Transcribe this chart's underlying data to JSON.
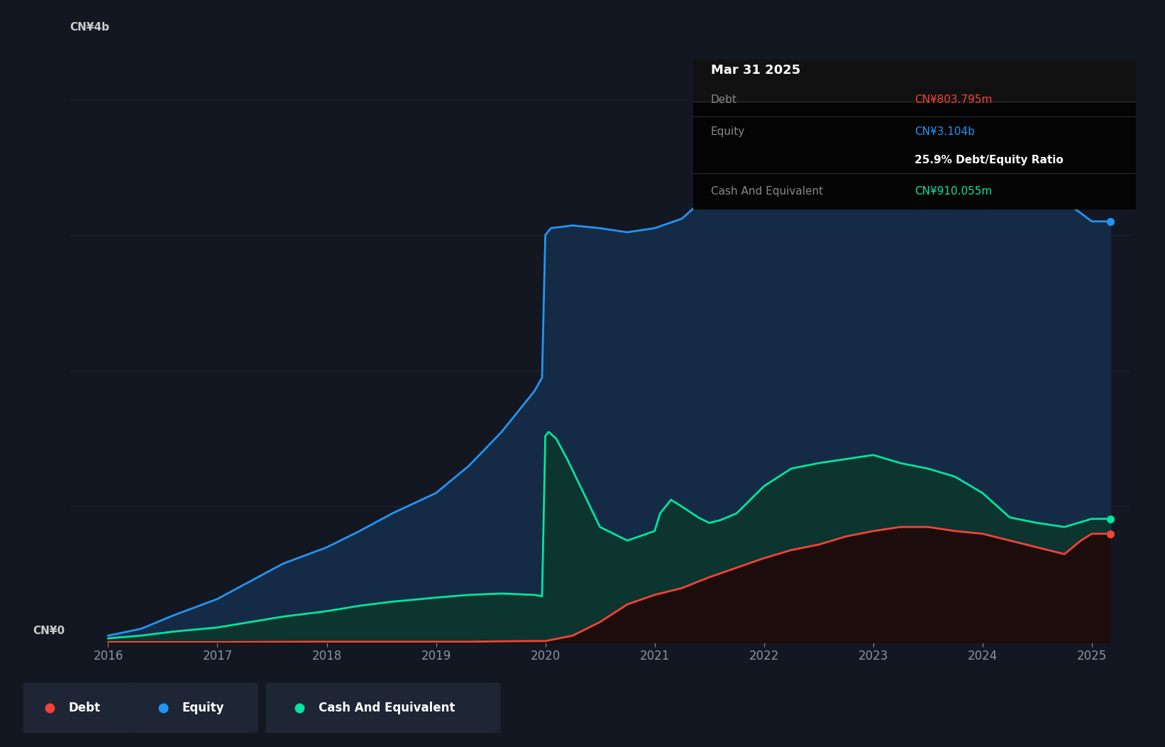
{
  "bg_color": "#131722",
  "plot_bg": "#131722",
  "grid_color": "#1e2535",
  "ylabel_text": "CN¥4b",
  "y0_text": "CN¥0",
  "x_ticks": [
    2016,
    2017,
    2018,
    2019,
    2020,
    2021,
    2022,
    2023,
    2024,
    2025
  ],
  "ylim": [
    0,
    4400000000.0
  ],
  "ytick_positions": [
    0,
    1000000000.0,
    2000000000.0,
    3000000000.0,
    4000000000.0
  ],
  "equity_color": "#2196f3",
  "debt_color": "#f44336",
  "cash_color": "#00e5a0",
  "equity_fill": "#152a45",
  "cash_fill_top": "#0d3832",
  "cash_fill_bottom": "#0a2520",
  "debt_fill": "#1f0f0f",
  "tooltip_bg": "#040404",
  "tooltip_title": "Mar 31 2025",
  "tooltip_debt_label": "Debt",
  "tooltip_debt_value": "CN¥803.795m",
  "tooltip_equity_label": "Equity",
  "tooltip_equity_value": "CN¥3.104b",
  "tooltip_ratio": "25.9% Debt/Equity Ratio",
  "tooltip_cash_label": "Cash And Equivalent",
  "tooltip_cash_value": "CN¥910.055m",
  "legend_bg": "#1e2535",
  "legend_debt": "Debt",
  "legend_equity": "Equity",
  "legend_cash": "Cash And Equivalent",
  "equity_x": [
    2016.0,
    2016.3,
    2016.6,
    2017.0,
    2017.3,
    2017.6,
    2018.0,
    2018.3,
    2018.6,
    2019.0,
    2019.3,
    2019.6,
    2019.9,
    2019.97,
    2020.0,
    2020.05,
    2020.25,
    2020.5,
    2020.75,
    2021.0,
    2021.25,
    2021.5,
    2021.75,
    2022.0,
    2022.25,
    2022.5,
    2022.75,
    2023.0,
    2023.25,
    2023.5,
    2023.75,
    2024.0,
    2024.25,
    2024.5,
    2024.75,
    2025.0,
    2025.17
  ],
  "equity_y": [
    50000000.0,
    100000000.0,
    200000000.0,
    320000000.0,
    450000000.0,
    580000000.0,
    700000000.0,
    820000000.0,
    950000000.0,
    1100000000.0,
    1300000000.0,
    1550000000.0,
    1850000000.0,
    1950000000.0,
    3000000000.0,
    3050000000.0,
    3070000000.0,
    3050000000.0,
    3020000000.0,
    3050000000.0,
    3120000000.0,
    3300000000.0,
    3400000000.0,
    3480000000.0,
    3550000000.0,
    3620000000.0,
    3680000000.0,
    3720000000.0,
    3760000000.0,
    3720000000.0,
    3700000000.0,
    3650000000.0,
    3500000000.0,
    3400000000.0,
    3250000000.0,
    3100000000.0,
    3100000000.0
  ],
  "debt_x": [
    2016.0,
    2016.3,
    2016.6,
    2017.0,
    2017.3,
    2017.6,
    2018.0,
    2018.3,
    2018.6,
    2019.0,
    2019.3,
    2019.6,
    2019.9,
    2020.0,
    2020.25,
    2020.5,
    2020.75,
    2021.0,
    2021.25,
    2021.5,
    2021.75,
    2022.0,
    2022.25,
    2022.5,
    2022.75,
    2023.0,
    2023.25,
    2023.5,
    2023.75,
    2024.0,
    2024.25,
    2024.5,
    2024.75,
    2024.9,
    2025.0,
    2025.17
  ],
  "debt_y": [
    2000000.0,
    2000000.0,
    2000000.0,
    2000000.0,
    3000000.0,
    4000000.0,
    5000000.0,
    5000000.0,
    5000000.0,
    5000000.0,
    5000000.0,
    8000000.0,
    10000000.0,
    10000000.0,
    50000000.0,
    150000000.0,
    280000000.0,
    350000000.0,
    400000000.0,
    480000000.0,
    550000000.0,
    620000000.0,
    680000000.0,
    720000000.0,
    780000000.0,
    820000000.0,
    850000000.0,
    850000000.0,
    820000000.0,
    800000000.0,
    750000000.0,
    700000000.0,
    650000000.0,
    750000000.0,
    800000000.0,
    800000000.0
  ],
  "cash_x": [
    2016.0,
    2016.3,
    2016.6,
    2017.0,
    2017.3,
    2017.6,
    2018.0,
    2018.3,
    2018.6,
    2019.0,
    2019.3,
    2019.6,
    2019.9,
    2019.97,
    2020.0,
    2020.03,
    2020.1,
    2020.2,
    2020.35,
    2020.5,
    2020.75,
    2021.0,
    2021.05,
    2021.15,
    2021.25,
    2021.4,
    2021.5,
    2021.6,
    2021.75,
    2022.0,
    2022.25,
    2022.5,
    2022.75,
    2023.0,
    2023.25,
    2023.5,
    2023.75,
    2024.0,
    2024.25,
    2024.5,
    2024.75,
    2025.0,
    2025.17
  ],
  "cash_y": [
    30000000.0,
    50000000.0,
    80000000.0,
    110000000.0,
    150000000.0,
    190000000.0,
    230000000.0,
    270000000.0,
    300000000.0,
    330000000.0,
    350000000.0,
    360000000.0,
    350000000.0,
    340000000.0,
    1520000000.0,
    1550000000.0,
    1500000000.0,
    1350000000.0,
    1100000000.0,
    850000000.0,
    750000000.0,
    820000000.0,
    950000000.0,
    1050000000.0,
    1000000000.0,
    920000000.0,
    880000000.0,
    900000000.0,
    950000000.0,
    1150000000.0,
    1280000000.0,
    1320000000.0,
    1350000000.0,
    1380000000.0,
    1320000000.0,
    1280000000.0,
    1220000000.0,
    1100000000.0,
    920000000.0,
    880000000.0,
    850000000.0,
    910000000.0,
    910000000.0
  ]
}
